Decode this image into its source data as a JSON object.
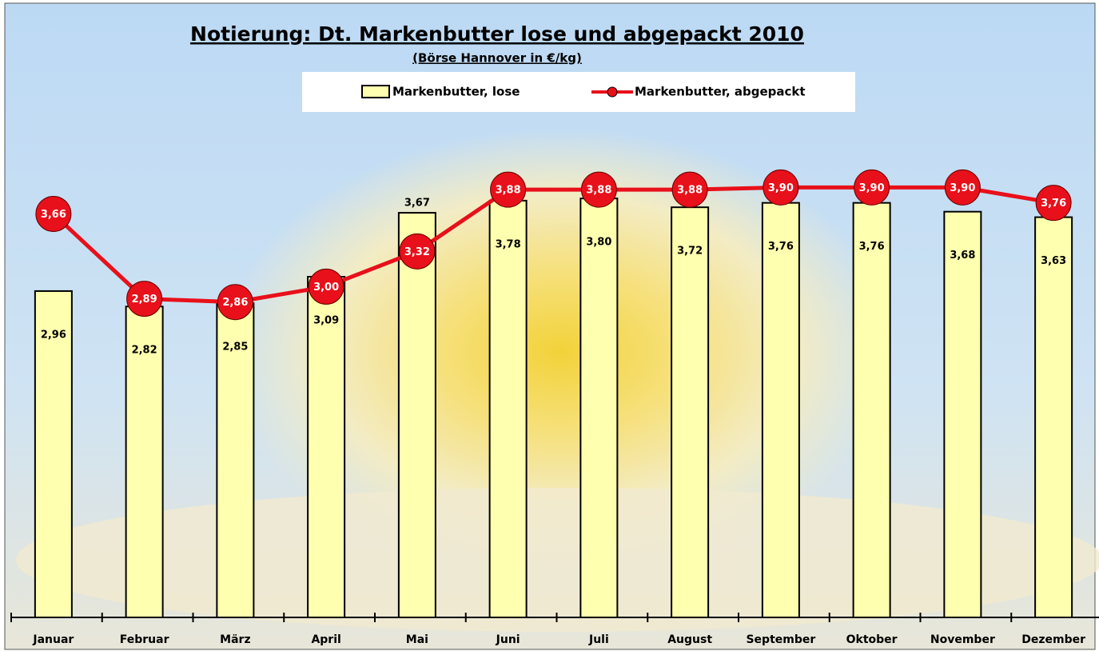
{
  "chart_data": {
    "type": "bar-line",
    "title": "Notierung: Dt. Markenbutter lose und abgepackt 2010",
    "subtitle": "(Börse Hannover in €/kg)",
    "categories": [
      "Januar",
      "Februar",
      "März",
      "April",
      "Mai",
      "Juni",
      "Juli",
      "August",
      "September",
      "Oktober",
      "November",
      "Dezember"
    ],
    "series": [
      {
        "name": "Markenbutter, lose",
        "type": "bar",
        "color": "#ffffb0",
        "values": [
          2.96,
          2.82,
          2.85,
          3.09,
          3.67,
          3.78,
          3.8,
          3.72,
          3.76,
          3.76,
          3.68,
          3.63
        ],
        "value_labels": [
          "2,96",
          "2,82",
          "2,85",
          "3,09",
          "3,67",
          "3,78",
          "3,80",
          "3,72",
          "3,76",
          "3,76",
          "3,68",
          "3,63"
        ]
      },
      {
        "name": "Markenbutter, abgepackt",
        "type": "line",
        "color": "#e8101a",
        "values": [
          3.66,
          2.89,
          2.86,
          3.0,
          3.32,
          3.88,
          3.88,
          3.88,
          3.9,
          3.9,
          3.9,
          3.76
        ],
        "value_labels": [
          "3,66",
          "2,89",
          "2,86",
          "3,00",
          "3,32",
          "3,88",
          "3,88",
          "3,88",
          "3,90",
          "3,90",
          "3,90",
          "3,76"
        ]
      }
    ],
    "ylim": [
      0,
      5.6
    ]
  }
}
